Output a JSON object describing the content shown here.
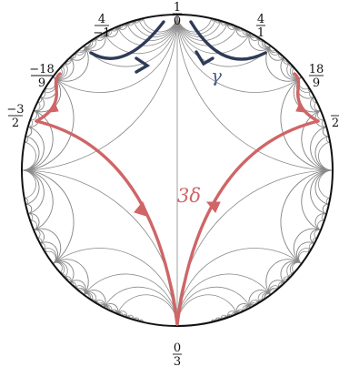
{
  "diagram": {
    "colors": {
      "background": "#ffffff",
      "disk_boundary": "#111111",
      "geodesic": "#8a8a8a",
      "gamma_path": "#2e3b58",
      "delta_path": "#d06566"
    },
    "cusp_labels": [
      {
        "id": "top",
        "num": "1",
        "den": "0"
      },
      {
        "id": "bottom",
        "num": "0",
        "den": "3"
      },
      {
        "id": "upper-left",
        "num": "4",
        "den": "−1"
      },
      {
        "id": "upper-right",
        "num": "4",
        "den": "1"
      },
      {
        "id": "left-high",
        "num": "−18",
        "den": "9"
      },
      {
        "id": "right-high",
        "num": "18",
        "den": "9"
      },
      {
        "id": "left-low",
        "num": "−3",
        "den": "2"
      },
      {
        "id": "right-low",
        "num": "",
        "den": "2"
      }
    ],
    "path_labels": {
      "gamma": "γ",
      "delta": "3δ"
    }
  }
}
